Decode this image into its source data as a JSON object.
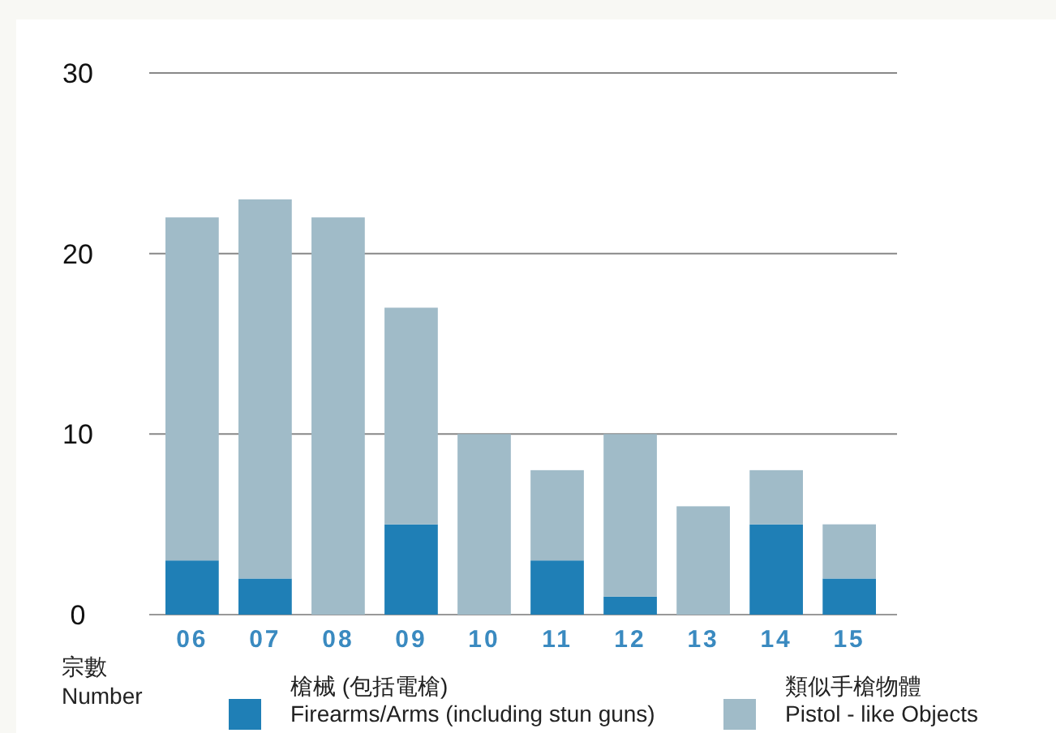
{
  "chart_data": {
    "type": "bar",
    "stacked": true,
    "ylabel": "宗數\nNumber",
    "categories": [
      "06",
      "07",
      "08",
      "09",
      "10",
      "11",
      "12",
      "13",
      "14",
      "15"
    ],
    "series": [
      {
        "name": "槍械 (包括電槍)\nFirearms/Arms (including stun guns)",
        "color": "#1f7fb6",
        "values": [
          3,
          2,
          0,
          5,
          0,
          3,
          1,
          0,
          5,
          2
        ]
      },
      {
        "name": "類似手槍物體\nPistol - like Objects",
        "color": "#a0bbc8",
        "values": [
          19,
          21,
          22,
          12,
          10,
          5,
          9,
          6,
          3,
          3
        ]
      }
    ],
    "ylim": [
      0,
      30
    ],
    "yticks": [
      0,
      10,
      20,
      30
    ],
    "grid": "y",
    "legend": "bottom"
  }
}
